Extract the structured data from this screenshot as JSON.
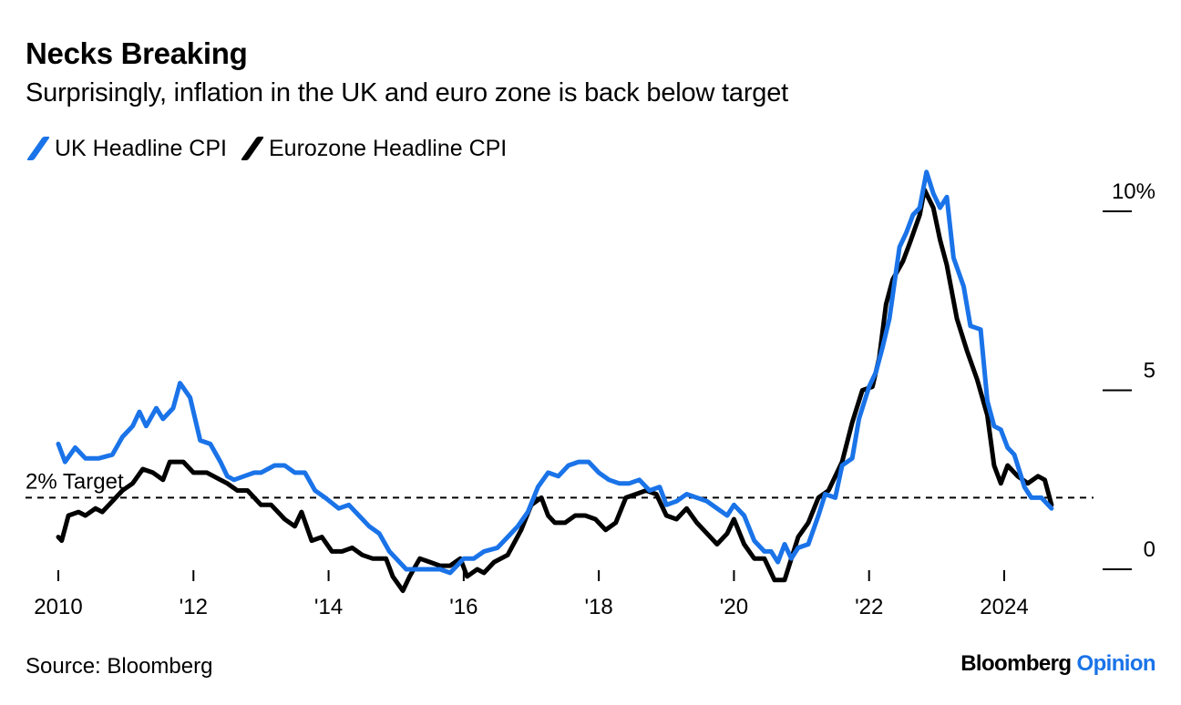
{
  "title": "Necks Breaking",
  "subtitle": "Surprisingly, inflation in the UK and euro zone is back below target",
  "source": "Source: Bloomberg",
  "brand": {
    "name": "Bloomberg",
    "product": "Opinion"
  },
  "colors": {
    "uk": "#1a73e8",
    "eurozone": "#000000",
    "target": "#000000"
  },
  "chart_data": {
    "type": "line",
    "title": "Necks Breaking",
    "subtitle": "Surprisingly, inflation in the UK and euro zone is back below target",
    "xlabel": "",
    "ylabel": "",
    "xlim": [
      2010.0,
      2025.0
    ],
    "ylim": [
      -1.0,
      10.5
    ],
    "x_ticks": [
      {
        "value": 2010,
        "label": "2010"
      },
      {
        "value": 2012,
        "label": "'12"
      },
      {
        "value": 2014,
        "label": "'14"
      },
      {
        "value": 2016,
        "label": "'16"
      },
      {
        "value": 2018,
        "label": "'18"
      },
      {
        "value": 2020,
        "label": "'20"
      },
      {
        "value": 2022,
        "label": "'22"
      },
      {
        "value": 2024,
        "label": "2024"
      }
    ],
    "y_ticks": [
      {
        "value": 0,
        "label": "0"
      },
      {
        "value": 5,
        "label": "5"
      },
      {
        "value": 10,
        "label": "10%"
      }
    ],
    "grid": false,
    "legend": "top-left",
    "reference_line": {
      "value": 2,
      "label": "2% Target",
      "style": "dashed"
    },
    "series": [
      {
        "name": "UK Headline CPI",
        "color": "#1a73e8",
        "points": [
          [
            2010.0,
            3.5
          ],
          [
            2010.1,
            3.0
          ],
          [
            2010.25,
            3.4
          ],
          [
            2010.4,
            3.1
          ],
          [
            2010.6,
            3.1
          ],
          [
            2010.8,
            3.2
          ],
          [
            2010.95,
            3.7
          ],
          [
            2011.1,
            4.0
          ],
          [
            2011.2,
            4.4
          ],
          [
            2011.3,
            4.0
          ],
          [
            2011.45,
            4.5
          ],
          [
            2011.55,
            4.2
          ],
          [
            2011.7,
            4.5
          ],
          [
            2011.8,
            5.2
          ],
          [
            2011.95,
            4.8
          ],
          [
            2012.1,
            3.6
          ],
          [
            2012.25,
            3.5
          ],
          [
            2012.4,
            3.0
          ],
          [
            2012.5,
            2.6
          ],
          [
            2012.6,
            2.5
          ],
          [
            2012.75,
            2.6
          ],
          [
            2012.9,
            2.7
          ],
          [
            2013.0,
            2.7
          ],
          [
            2013.2,
            2.9
          ],
          [
            2013.35,
            2.9
          ],
          [
            2013.5,
            2.7
          ],
          [
            2013.65,
            2.7
          ],
          [
            2013.8,
            2.2
          ],
          [
            2013.95,
            2.0
          ],
          [
            2014.15,
            1.7
          ],
          [
            2014.3,
            1.8
          ],
          [
            2014.45,
            1.5
          ],
          [
            2014.6,
            1.2
          ],
          [
            2014.75,
            1.0
          ],
          [
            2014.9,
            0.5
          ],
          [
            2015.0,
            0.3
          ],
          [
            2015.15,
            0.0
          ],
          [
            2015.3,
            0.0
          ],
          [
            2015.4,
            0.0
          ],
          [
            2015.5,
            0.0
          ],
          [
            2015.65,
            0.0
          ],
          [
            2015.8,
            -0.1
          ],
          [
            2015.9,
            0.1
          ],
          [
            2016.0,
            0.3
          ],
          [
            2016.15,
            0.3
          ],
          [
            2016.3,
            0.5
          ],
          [
            2016.5,
            0.6
          ],
          [
            2016.65,
            0.9
          ],
          [
            2016.8,
            1.2
          ],
          [
            2016.95,
            1.6
          ],
          [
            2017.1,
            2.3
          ],
          [
            2017.25,
            2.7
          ],
          [
            2017.4,
            2.6
          ],
          [
            2017.55,
            2.9
          ],
          [
            2017.7,
            3.0
          ],
          [
            2017.85,
            3.0
          ],
          [
            2018.0,
            2.7
          ],
          [
            2018.15,
            2.5
          ],
          [
            2018.3,
            2.4
          ],
          [
            2018.45,
            2.4
          ],
          [
            2018.6,
            2.5
          ],
          [
            2018.75,
            2.2
          ],
          [
            2018.9,
            2.3
          ],
          [
            2019.0,
            1.8
          ],
          [
            2019.15,
            1.9
          ],
          [
            2019.3,
            2.1
          ],
          [
            2019.45,
            2.0
          ],
          [
            2019.6,
            1.9
          ],
          [
            2019.75,
            1.7
          ],
          [
            2019.9,
            1.5
          ],
          [
            2020.0,
            1.8
          ],
          [
            2020.15,
            1.5
          ],
          [
            2020.3,
            0.8
          ],
          [
            2020.45,
            0.5
          ],
          [
            2020.55,
            0.5
          ],
          [
            2020.65,
            0.2
          ],
          [
            2020.75,
            0.7
          ],
          [
            2020.85,
            0.3
          ],
          [
            2020.95,
            0.6
          ],
          [
            2021.1,
            0.7
          ],
          [
            2021.25,
            1.5
          ],
          [
            2021.35,
            2.1
          ],
          [
            2021.5,
            2.0
          ],
          [
            2021.6,
            2.9
          ],
          [
            2021.75,
            3.1
          ],
          [
            2021.85,
            4.2
          ],
          [
            2022.0,
            5.1
          ],
          [
            2022.1,
            5.5
          ],
          [
            2022.2,
            6.2
          ],
          [
            2022.3,
            7.0
          ],
          [
            2022.45,
            9.0
          ],
          [
            2022.55,
            9.4
          ],
          [
            2022.65,
            9.9
          ],
          [
            2022.75,
            10.1
          ],
          [
            2022.85,
            11.1
          ],
          [
            2022.95,
            10.5
          ],
          [
            2023.05,
            10.1
          ],
          [
            2023.15,
            10.4
          ],
          [
            2023.25,
            8.7
          ],
          [
            2023.4,
            7.9
          ],
          [
            2023.5,
            6.8
          ],
          [
            2023.65,
            6.7
          ],
          [
            2023.75,
            4.7
          ],
          [
            2023.85,
            4.0
          ],
          [
            2023.95,
            3.9
          ],
          [
            2024.05,
            3.4
          ],
          [
            2024.15,
            3.2
          ],
          [
            2024.3,
            2.3
          ],
          [
            2024.4,
            2.0
          ],
          [
            2024.55,
            2.0
          ],
          [
            2024.7,
            1.7
          ]
        ]
      },
      {
        "name": "Eurozone Headline CPI",
        "color": "#000000",
        "points": [
          [
            2010.0,
            0.9
          ],
          [
            2010.05,
            0.8
          ],
          [
            2010.15,
            1.5
          ],
          [
            2010.3,
            1.6
          ],
          [
            2010.4,
            1.5
          ],
          [
            2010.55,
            1.7
          ],
          [
            2010.65,
            1.6
          ],
          [
            2010.8,
            1.9
          ],
          [
            2010.95,
            2.2
          ],
          [
            2011.1,
            2.4
          ],
          [
            2011.25,
            2.8
          ],
          [
            2011.4,
            2.7
          ],
          [
            2011.55,
            2.5
          ],
          [
            2011.65,
            3.0
          ],
          [
            2011.85,
            3.0
          ],
          [
            2012.0,
            2.7
          ],
          [
            2012.2,
            2.7
          ],
          [
            2012.4,
            2.5
          ],
          [
            2012.5,
            2.4
          ],
          [
            2012.65,
            2.2
          ],
          [
            2012.8,
            2.2
          ],
          [
            2013.0,
            1.8
          ],
          [
            2013.15,
            1.8
          ],
          [
            2013.35,
            1.4
          ],
          [
            2013.5,
            1.2
          ],
          [
            2013.6,
            1.6
          ],
          [
            2013.75,
            0.8
          ],
          [
            2013.9,
            0.9
          ],
          [
            2014.05,
            0.5
          ],
          [
            2014.2,
            0.5
          ],
          [
            2014.35,
            0.6
          ],
          [
            2014.5,
            0.4
          ],
          [
            2014.65,
            0.3
          ],
          [
            2014.85,
            0.3
          ],
          [
            2014.95,
            -0.2
          ],
          [
            2015.1,
            -0.6
          ],
          [
            2015.2,
            -0.2
          ],
          [
            2015.35,
            0.3
          ],
          [
            2015.5,
            0.2
          ],
          [
            2015.65,
            0.1
          ],
          [
            2015.8,
            0.1
          ],
          [
            2015.95,
            0.3
          ],
          [
            2016.05,
            -0.2
          ],
          [
            2016.2,
            0.0
          ],
          [
            2016.3,
            -0.1
          ],
          [
            2016.45,
            0.2
          ],
          [
            2016.65,
            0.4
          ],
          [
            2016.85,
            1.1
          ],
          [
            2017.0,
            1.8
          ],
          [
            2017.15,
            2.0
          ],
          [
            2017.25,
            1.5
          ],
          [
            2017.35,
            1.3
          ],
          [
            2017.5,
            1.3
          ],
          [
            2017.65,
            1.5
          ],
          [
            2017.8,
            1.5
          ],
          [
            2017.95,
            1.4
          ],
          [
            2018.1,
            1.1
          ],
          [
            2018.25,
            1.3
          ],
          [
            2018.4,
            2.0
          ],
          [
            2018.55,
            2.1
          ],
          [
            2018.7,
            2.2
          ],
          [
            2018.85,
            2.1
          ],
          [
            2019.0,
            1.5
          ],
          [
            2019.15,
            1.4
          ],
          [
            2019.3,
            1.7
          ],
          [
            2019.45,
            1.3
          ],
          [
            2019.6,
            1.0
          ],
          [
            2019.75,
            0.7
          ],
          [
            2019.9,
            1.0
          ],
          [
            2020.0,
            1.4
          ],
          [
            2020.15,
            0.7
          ],
          [
            2020.3,
            0.3
          ],
          [
            2020.45,
            0.3
          ],
          [
            2020.6,
            -0.3
          ],
          [
            2020.75,
            -0.3
          ],
          [
            2020.95,
            0.9
          ],
          [
            2021.1,
            1.3
          ],
          [
            2021.25,
            2.0
          ],
          [
            2021.4,
            2.2
          ],
          [
            2021.6,
            3.0
          ],
          [
            2021.75,
            4.1
          ],
          [
            2021.9,
            5.0
          ],
          [
            2022.05,
            5.1
          ],
          [
            2022.15,
            5.9
          ],
          [
            2022.25,
            7.4
          ],
          [
            2022.35,
            8.1
          ],
          [
            2022.5,
            8.6
          ],
          [
            2022.6,
            9.1
          ],
          [
            2022.75,
            9.9
          ],
          [
            2022.82,
            10.6
          ],
          [
            2022.95,
            10.1
          ],
          [
            2023.05,
            9.2
          ],
          [
            2023.15,
            8.5
          ],
          [
            2023.3,
            7.0
          ],
          [
            2023.45,
            6.1
          ],
          [
            2023.6,
            5.3
          ],
          [
            2023.75,
            4.3
          ],
          [
            2023.85,
            2.9
          ],
          [
            2023.95,
            2.4
          ],
          [
            2024.05,
            2.9
          ],
          [
            2024.2,
            2.6
          ],
          [
            2024.35,
            2.4
          ],
          [
            2024.5,
            2.6
          ],
          [
            2024.6,
            2.5
          ],
          [
            2024.7,
            1.8
          ]
        ]
      }
    ]
  }
}
